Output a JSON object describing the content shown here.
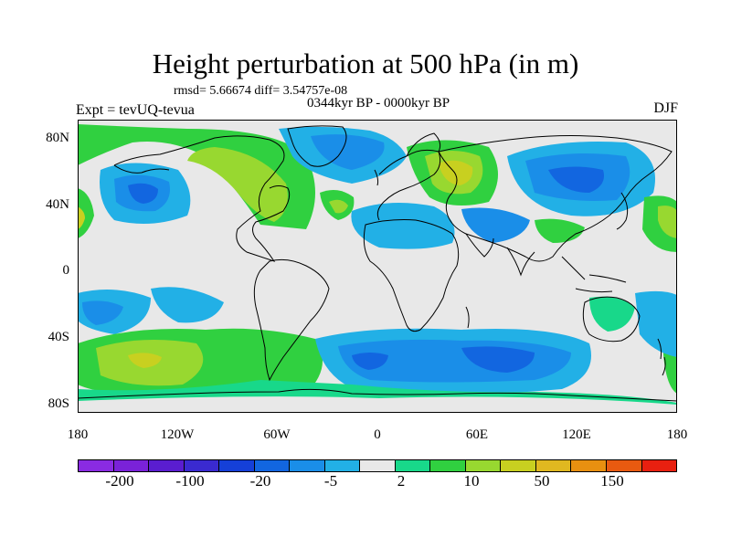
{
  "title": "Height perturbation at 500 hPa (in m)",
  "stats": "rmsd= 5.66674 diff= 3.54757e-08",
  "period": "0344kyr BP - 0000kyr BP",
  "experiment": "Expt = tevUQ-tevua",
  "season": "DJF",
  "map": {
    "type": "filled-contour",
    "variable": "500 hPa geopotential height perturbation",
    "units": "m",
    "lon_range": [
      -180,
      180
    ],
    "lat_range": [
      -90,
      90
    ],
    "lat_tick_labels": [
      "80N",
      "40N",
      "0",
      "40S",
      "80S"
    ],
    "lon_tick_labels": [
      "180",
      "120W",
      "60W",
      "0",
      "60E",
      "120E",
      "180"
    ]
  },
  "colorbar": {
    "colors": [
      "#8a2be2",
      "#7a22d8",
      "#5a1dd0",
      "#3a2ad0",
      "#1540d8",
      "#1266e0",
      "#1a8ee8",
      "#22b0e6",
      "#e8e8e8",
      "#18d88a",
      "#30d040",
      "#98d830",
      "#c8d020",
      "#e0b820",
      "#e89010",
      "#e85a10",
      "#e82010"
    ],
    "tick_labels": [
      "-200",
      "-100",
      "-20",
      "-5",
      "2",
      "10",
      "50",
      "150"
    ]
  },
  "colors": {
    "land_mask": "#e8e8e8",
    "coastline": "#000000"
  }
}
